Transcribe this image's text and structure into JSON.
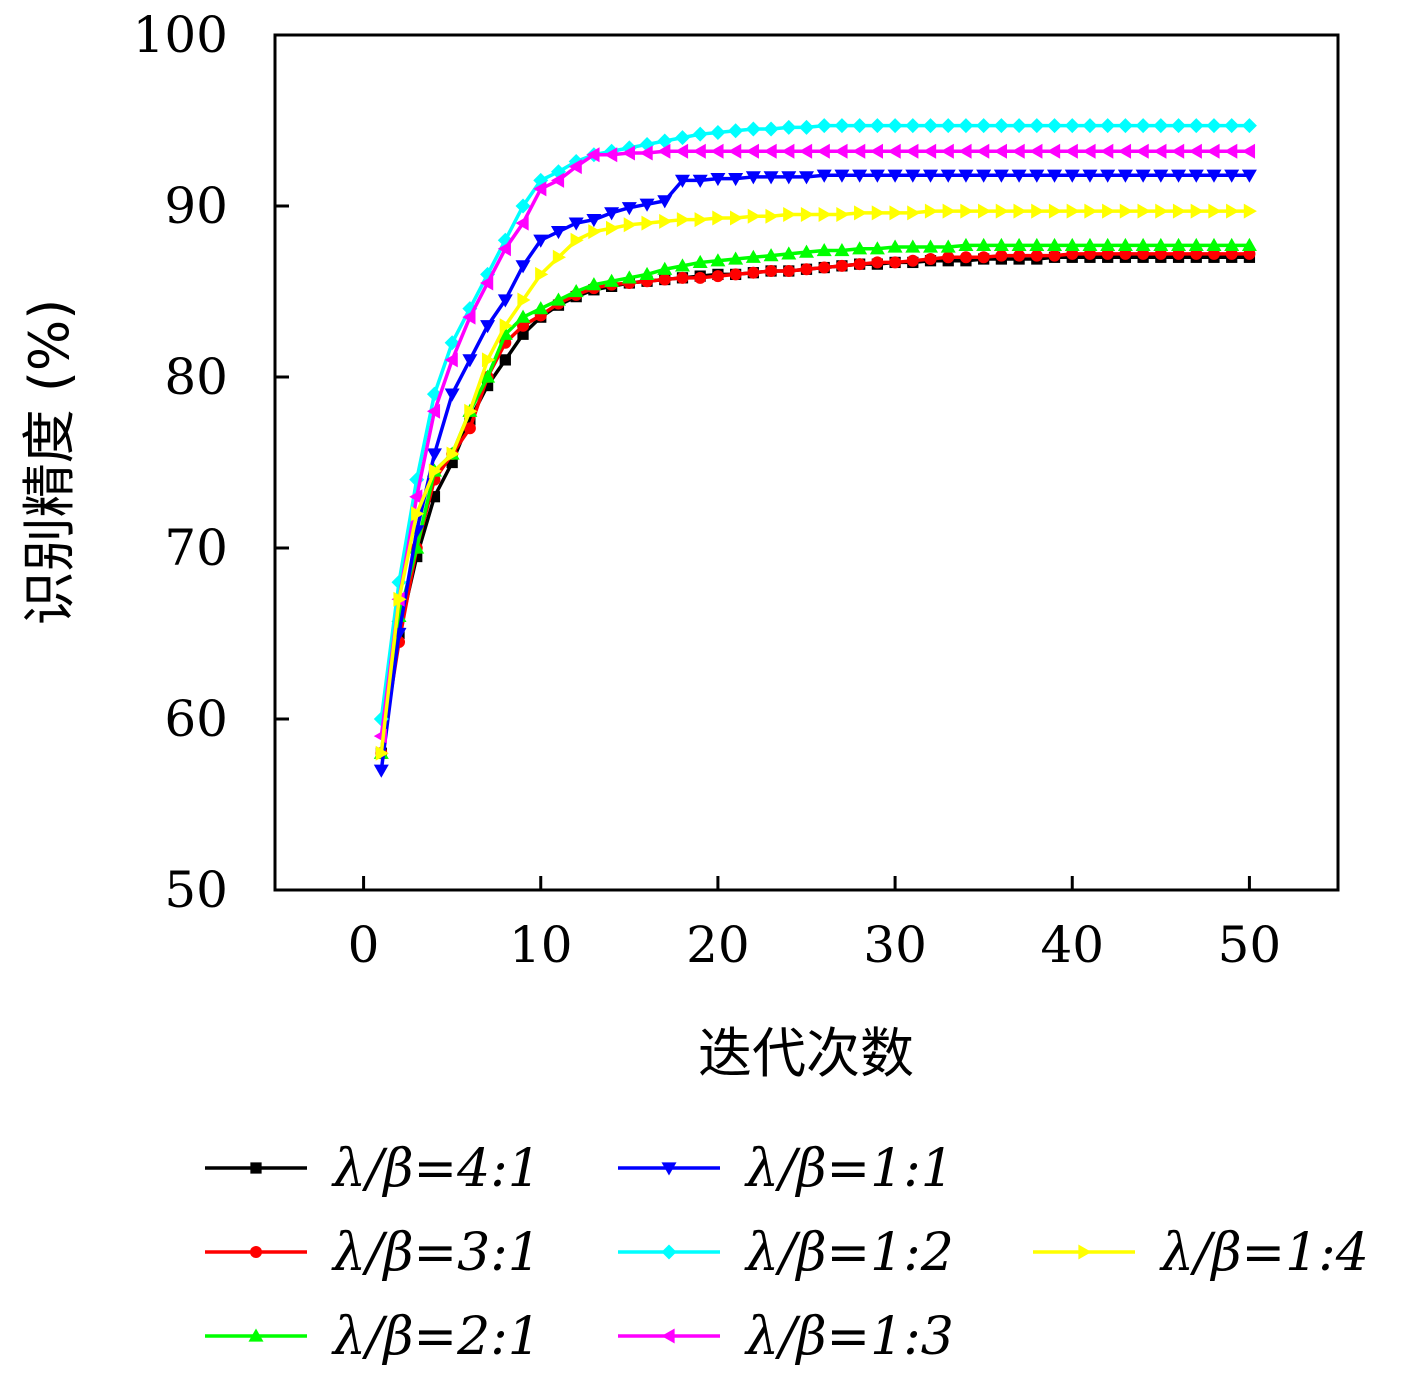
{
  "chart_data": {
    "type": "line",
    "title": "",
    "xlabel": "迭代次数",
    "ylabel": "识别精度 (%)",
    "xlim": [
      -5,
      55
    ],
    "ylim": [
      50,
      100
    ],
    "xticks": [
      0,
      10,
      20,
      30,
      40,
      50
    ],
    "yticks": [
      50,
      60,
      70,
      80,
      90,
      100
    ],
    "x_tick_labels": [
      "0",
      "10",
      "20",
      "30",
      "40",
      "50"
    ],
    "y_tick_labels": [
      "50",
      "60",
      "70",
      "80",
      "90",
      "100"
    ],
    "x": [
      1,
      2,
      3,
      4,
      5,
      6,
      7,
      8,
      9,
      10,
      11,
      12,
      13,
      14,
      15,
      16,
      17,
      18,
      19,
      20,
      21,
      22,
      23,
      24,
      25,
      26,
      27,
      28,
      29,
      30,
      31,
      32,
      33,
      34,
      35,
      36,
      37,
      38,
      39,
      40,
      41,
      42,
      43,
      44,
      45,
      46,
      47,
      48,
      49,
      50
    ],
    "legend_position": "bottom",
    "series": [
      {
        "name": "λ/β=4:1",
        "color": "#000000",
        "marker": "square",
        "values": [
          58,
          65,
          69.5,
          73,
          75,
          77.5,
          79.5,
          81,
          82.5,
          83.5,
          84.2,
          84.7,
          85.1,
          85.3,
          85.5,
          85.6,
          85.7,
          85.8,
          85.9,
          86.0,
          86.0,
          86.1,
          86.2,
          86.2,
          86.3,
          86.4,
          86.5,
          86.6,
          86.6,
          86.7,
          86.7,
          86.8,
          86.8,
          86.8,
          86.9,
          86.9,
          86.9,
          86.9,
          87.0,
          87.0,
          87.0,
          87.0,
          87.0,
          87.0,
          87.0,
          87.0,
          87.0,
          87.0,
          87.0,
          87.0
        ]
      },
      {
        "name": "λ/β=3:1",
        "color": "#ff0000",
        "marker": "circle",
        "values": [
          58,
          64.5,
          70,
          74,
          75.5,
          77,
          80,
          82,
          83,
          83.6,
          84.3,
          84.8,
          85.2,
          85.4,
          85.5,
          85.6,
          85.7,
          85.8,
          85.8,
          85.9,
          86.0,
          86.1,
          86.2,
          86.2,
          86.3,
          86.4,
          86.5,
          86.6,
          86.7,
          86.7,
          86.8,
          86.9,
          87.0,
          87.0,
          87.0,
          87.1,
          87.1,
          87.1,
          87.1,
          87.2,
          87.2,
          87.2,
          87.2,
          87.2,
          87.2,
          87.2,
          87.2,
          87.2,
          87.2,
          87.2
        ]
      },
      {
        "name": "λ/β=2:1",
        "color": "#00ff00",
        "marker": "triangle-up",
        "values": [
          58,
          66,
          70,
          74.5,
          75.5,
          78,
          80,
          82.5,
          83.5,
          84,
          84.5,
          85,
          85.4,
          85.6,
          85.8,
          86.0,
          86.3,
          86.5,
          86.7,
          86.8,
          86.9,
          87.0,
          87.1,
          87.2,
          87.3,
          87.4,
          87.4,
          87.5,
          87.5,
          87.6,
          87.6,
          87.6,
          87.6,
          87.7,
          87.7,
          87.7,
          87.7,
          87.7,
          87.7,
          87.7,
          87.7,
          87.7,
          87.7,
          87.7,
          87.7,
          87.7,
          87.7,
          87.7,
          87.7,
          87.7
        ]
      },
      {
        "name": "λ/β=1:1",
        "color": "#0000ff",
        "marker": "triangle-down",
        "values": [
          57,
          65,
          71,
          75.5,
          79,
          81,
          83,
          84.5,
          86.5,
          88,
          88.5,
          89,
          89.2,
          89.6,
          89.9,
          90.1,
          90.3,
          91.5,
          91.5,
          91.6,
          91.6,
          91.7,
          91.7,
          91.7,
          91.7,
          91.8,
          91.8,
          91.8,
          91.8,
          91.8,
          91.8,
          91.8,
          91.8,
          91.8,
          91.8,
          91.8,
          91.8,
          91.8,
          91.8,
          91.8,
          91.8,
          91.8,
          91.8,
          91.8,
          91.8,
          91.8,
          91.8,
          91.8,
          91.8,
          91.8
        ]
      },
      {
        "name": "λ/β=1:2",
        "color": "#00ffff",
        "marker": "diamond",
        "values": [
          60,
          68,
          74,
          79,
          82,
          84,
          86,
          88,
          90,
          91.5,
          92,
          92.6,
          93,
          93.2,
          93.4,
          93.6,
          93.8,
          94.0,
          94.2,
          94.3,
          94.4,
          94.5,
          94.5,
          94.6,
          94.6,
          94.7,
          94.7,
          94.7,
          94.7,
          94.7,
          94.7,
          94.7,
          94.7,
          94.7,
          94.7,
          94.7,
          94.7,
          94.7,
          94.7,
          94.7,
          94.7,
          94.7,
          94.7,
          94.7,
          94.7,
          94.7,
          94.7,
          94.7,
          94.7,
          94.7
        ]
      },
      {
        "name": "λ/β=1:3",
        "color": "#ff00ff",
        "marker": "triangle-left",
        "values": [
          59,
          67,
          73,
          78,
          81,
          83.5,
          85.5,
          87.5,
          89,
          91,
          91.5,
          92.3,
          93,
          93,
          93.1,
          93.1,
          93.2,
          93.2,
          93.2,
          93.2,
          93.2,
          93.2,
          93.2,
          93.2,
          93.2,
          93.2,
          93.2,
          93.2,
          93.2,
          93.2,
          93.2,
          93.2,
          93.2,
          93.2,
          93.2,
          93.2,
          93.2,
          93.2,
          93.2,
          93.2,
          93.2,
          93.2,
          93.2,
          93.2,
          93.2,
          93.2,
          93.2,
          93.2,
          93.2,
          93.2
        ]
      },
      {
        "name": "λ/β=1:4",
        "color": "#ffff00",
        "marker": "triangle-right",
        "values": [
          58,
          67,
          72,
          74.5,
          75.5,
          78,
          81,
          83,
          84.5,
          86,
          87,
          88,
          88.5,
          88.7,
          88.9,
          89.0,
          89.1,
          89.2,
          89.2,
          89.3,
          89.3,
          89.4,
          89.4,
          89.5,
          89.5,
          89.5,
          89.5,
          89.6,
          89.6,
          89.6,
          89.6,
          89.7,
          89.7,
          89.7,
          89.7,
          89.7,
          89.7,
          89.7,
          89.7,
          89.7,
          89.7,
          89.7,
          89.7,
          89.7,
          89.7,
          89.7,
          89.7,
          89.7,
          89.7,
          89.7
        ]
      }
    ]
  }
}
